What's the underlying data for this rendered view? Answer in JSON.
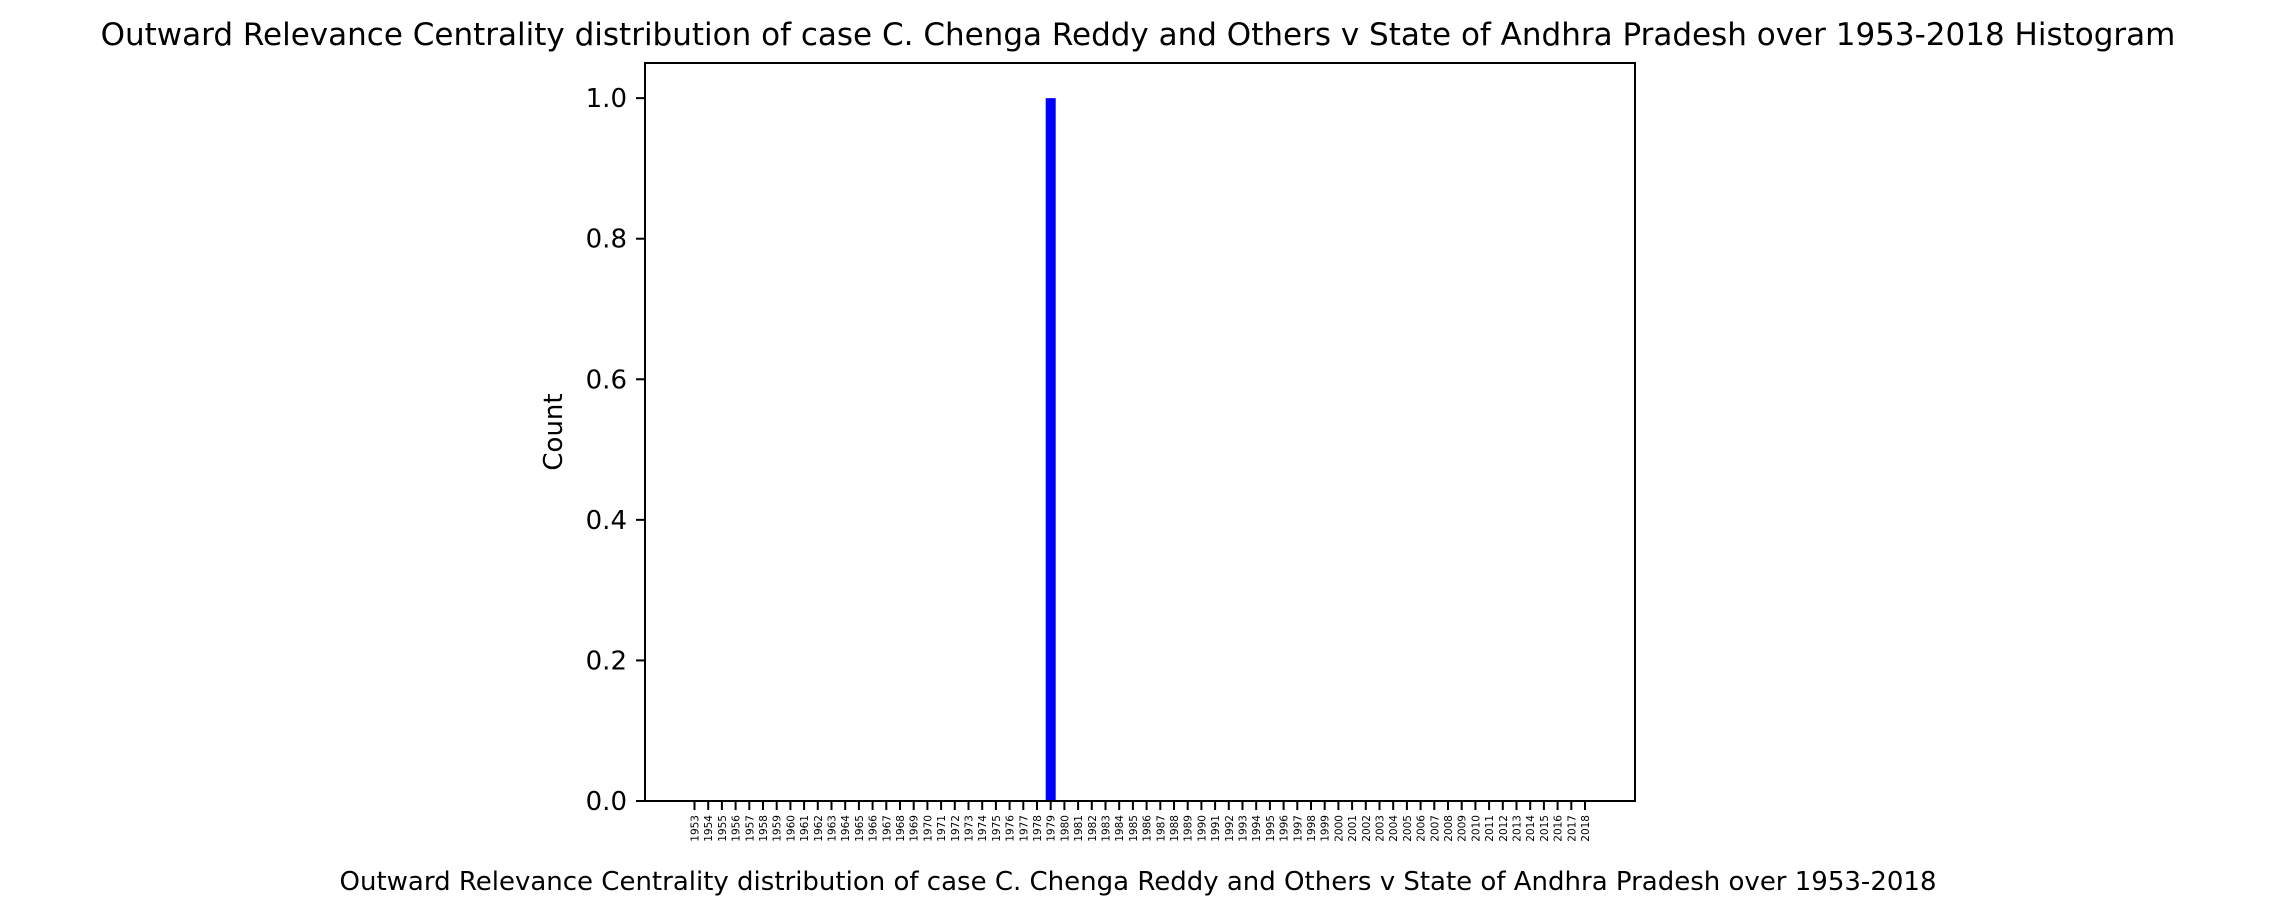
{
  "chart_data": {
    "type": "bar",
    "title": "Outward Relevance Centrality distribution of case C. Chenga Reddy and Others v State of Andhra Pradesh over 1953-2018 Histogram",
    "xlabel": "Outward Relevance Centrality distribution of case C. Chenga Reddy and Others v State of Andhra Pradesh over 1953-2018",
    "ylabel": "Count",
    "ylim": [
      0,
      1.05
    ],
    "yticks": [
      "0.0",
      "0.2",
      "0.4",
      "0.6",
      "0.8",
      "1.0"
    ],
    "categories": [
      "1953",
      "1954",
      "1955",
      "1956",
      "1957",
      "1958",
      "1959",
      "1960",
      "1961",
      "1962",
      "1963",
      "1964",
      "1965",
      "1966",
      "1967",
      "1968",
      "1969",
      "1970",
      "1971",
      "1972",
      "1973",
      "1974",
      "1975",
      "1976",
      "1977",
      "1978",
      "1979",
      "1980",
      "1981",
      "1982",
      "1983",
      "1984",
      "1985",
      "1986",
      "1987",
      "1988",
      "1989",
      "1990",
      "1991",
      "1992",
      "1993",
      "1994",
      "1995",
      "1996",
      "1997",
      "1998",
      "1999",
      "2000",
      "2001",
      "2002",
      "2003",
      "2004",
      "2005",
      "2006",
      "2007",
      "2008",
      "2009",
      "2010",
      "2011",
      "2012",
      "2013",
      "2014",
      "2015",
      "2016",
      "2017",
      "2018"
    ],
    "values": [
      0,
      0,
      0,
      0,
      0,
      0,
      0,
      0,
      0,
      0,
      0,
      0,
      0,
      0,
      0,
      0,
      0,
      0,
      0,
      0,
      0,
      0,
      0,
      0,
      0,
      0,
      1,
      0,
      0,
      0,
      0,
      0,
      0,
      0,
      0,
      0,
      0,
      0,
      0,
      0,
      0,
      0,
      0,
      0,
      0,
      0,
      0,
      0,
      0,
      0,
      0,
      0,
      0,
      0,
      0,
      0,
      0,
      0,
      0,
      0,
      0,
      0,
      0,
      0,
      0,
      0
    ],
    "bar_color": "#0000ff",
    "grid": false,
    "legend": "none"
  }
}
